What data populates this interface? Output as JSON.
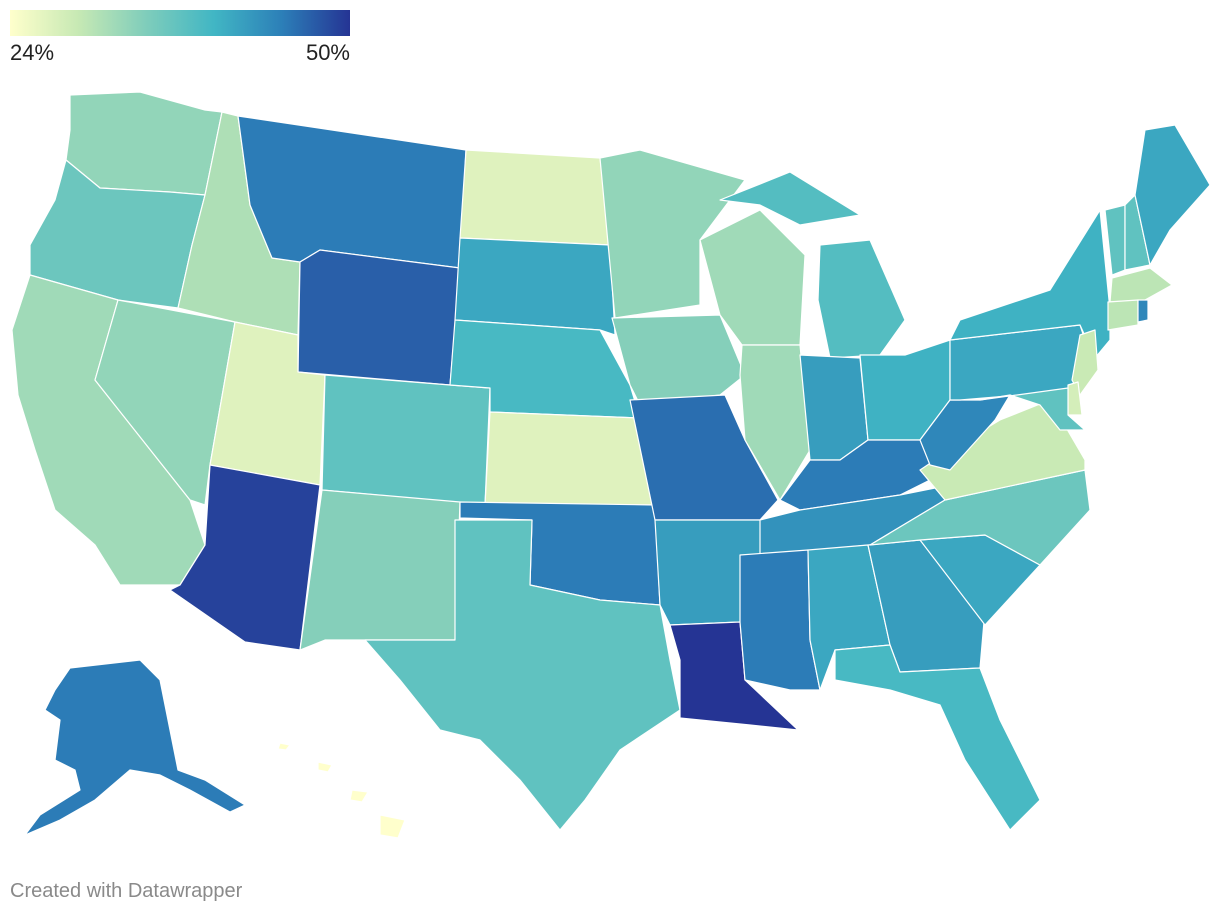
{
  "legend": {
    "min_label": "24%",
    "max_label": "50%",
    "colors": [
      "#ffffcc",
      "#c7e9b4",
      "#7fcdbb",
      "#41b6c4",
      "#2c7fb8",
      "#253494"
    ]
  },
  "credit": "Created with Datawrapper",
  "chart_data": {
    "type": "choropleth",
    "scale": {
      "min": 24,
      "max": 50,
      "unit": "%"
    },
    "states": [
      {
        "id": "WA",
        "value": 33
      },
      {
        "id": "OR",
        "value": 36
      },
      {
        "id": "CA",
        "value": 32
      },
      {
        "id": "NV",
        "value": 33
      },
      {
        "id": "ID",
        "value": 31
      },
      {
        "id": "MT",
        "value": 45
      },
      {
        "id": "WY",
        "value": 47
      },
      {
        "id": "UT",
        "value": 27
      },
      {
        "id": "AZ",
        "value": 49
      },
      {
        "id": "CO",
        "value": 37
      },
      {
        "id": "NM",
        "value": 34
      },
      {
        "id": "ND",
        "value": 27
      },
      {
        "id": "SD",
        "value": 41
      },
      {
        "id": "NE",
        "value": 39
      },
      {
        "id": "KS",
        "value": 27
      },
      {
        "id": "OK",
        "value": 45
      },
      {
        "id": "TX",
        "value": 37
      },
      {
        "id": "MN",
        "value": 33
      },
      {
        "id": "IA",
        "value": 34
      },
      {
        "id": "MO",
        "value": 46
      },
      {
        "id": "AR",
        "value": 42
      },
      {
        "id": "LA",
        "value": 50
      },
      {
        "id": "WI",
        "value": 32
      },
      {
        "id": "IL",
        "value": 32
      },
      {
        "id": "MI",
        "value": 38
      },
      {
        "id": "IN",
        "value": 42
      },
      {
        "id": "OH",
        "value": 40
      },
      {
        "id": "KY",
        "value": 45
      },
      {
        "id": "TN",
        "value": 43
      },
      {
        "id": "MS",
        "value": 45
      },
      {
        "id": "AL",
        "value": 41
      },
      {
        "id": "GA",
        "value": 42
      },
      {
        "id": "FL",
        "value": 39
      },
      {
        "id": "SC",
        "value": 41
      },
      {
        "id": "NC",
        "value": 36
      },
      {
        "id": "VA",
        "value": 29
      },
      {
        "id": "WV",
        "value": 44
      },
      {
        "id": "PA",
        "value": 41
      },
      {
        "id": "NY",
        "value": 40
      },
      {
        "id": "VT",
        "value": 37
      },
      {
        "id": "NH",
        "value": 37
      },
      {
        "id": "ME",
        "value": 41
      },
      {
        "id": "MA",
        "value": 30
      },
      {
        "id": "CT",
        "value": 30
      },
      {
        "id": "RI",
        "value": 44
      },
      {
        "id": "NJ",
        "value": 29
      },
      {
        "id": "DE",
        "value": 28
      },
      {
        "id": "MD",
        "value": 37
      },
      {
        "id": "AK",
        "value": 45
      },
      {
        "id": "HI",
        "value": 24
      }
    ]
  }
}
